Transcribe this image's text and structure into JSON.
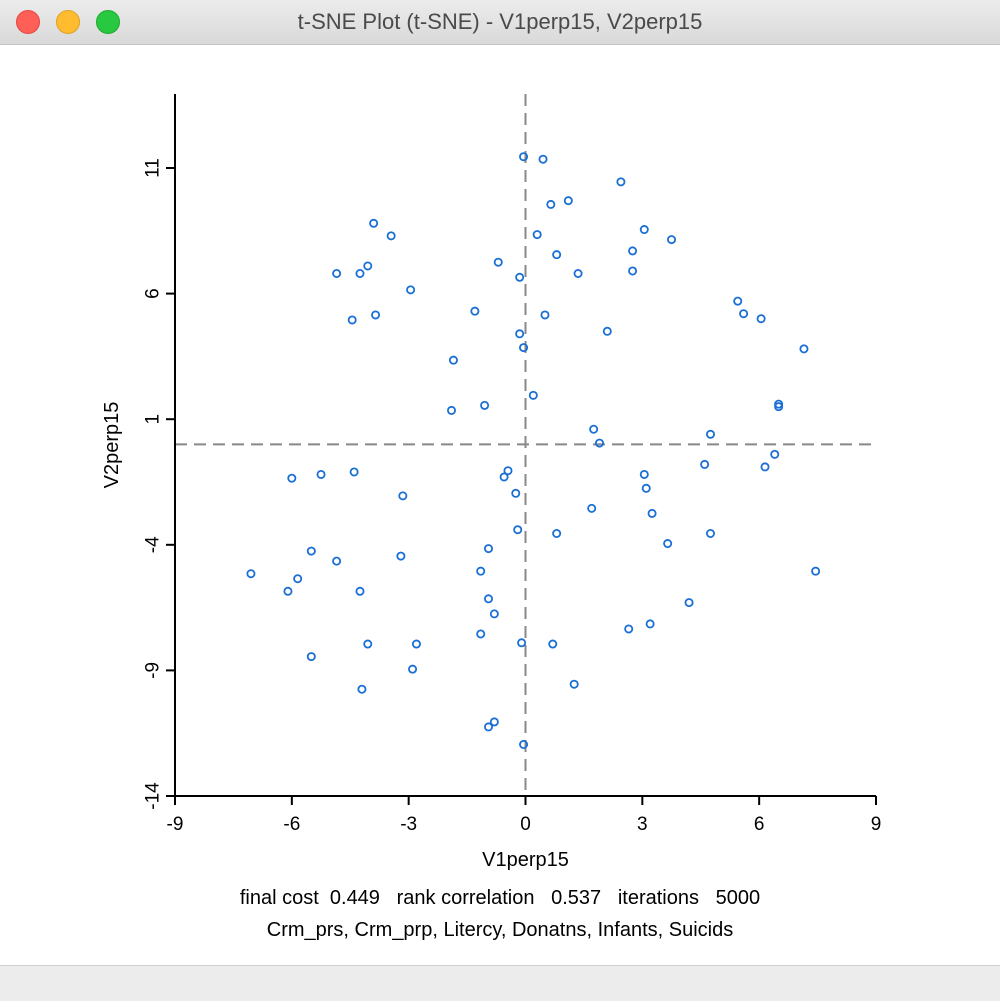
{
  "window": {
    "title": "t-SNE Plot (t-SNE) - V1perp15, V2perp15"
  },
  "footer": {
    "stats": "final cost  0.449   rank correlation   0.537   iterations   5000",
    "variables": "Crm_prs, Crm_prp, Litercy, Donatns, Infants, Suicids"
  },
  "colors": {
    "point": "#1a6fd6",
    "axis": "#000000",
    "reference_line": "#888888"
  },
  "chart_data": {
    "type": "scatter",
    "xlabel": "V1perp15",
    "ylabel": "V2perp15",
    "xlim": [
      -9,
      9
    ],
    "ylim": [
      -14,
      15
    ],
    "xticks": [
      -9,
      -6,
      -3,
      0,
      3,
      6,
      9
    ],
    "yticks": [
      -14,
      -9,
      -4,
      1,
      6,
      11
    ],
    "reference_lines": {
      "x": 0,
      "y": 0
    },
    "grid": false,
    "points": [
      [
        -0.05,
        11.45
      ],
      [
        0.45,
        11.35
      ],
      [
        2.45,
        10.45
      ],
      [
        0.65,
        9.55
      ],
      [
        1.1,
        9.7
      ],
      [
        -3.9,
        8.8
      ],
      [
        -3.45,
        8.3
      ],
      [
        0.3,
        8.35
      ],
      [
        3.05,
        8.55
      ],
      [
        3.75,
        8.15
      ],
      [
        -4.05,
        7.1
      ],
      [
        -4.25,
        6.8
      ],
      [
        -4.85,
        6.8
      ],
      [
        -0.7,
        7.25
      ],
      [
        0.8,
        7.55
      ],
      [
        2.75,
        7.7
      ],
      [
        2.75,
        6.9
      ],
      [
        1.35,
        6.8
      ],
      [
        -0.15,
        6.65
      ],
      [
        -2.95,
        6.15
      ],
      [
        -4.45,
        4.95
      ],
      [
        -3.85,
        5.15
      ],
      [
        -1.3,
        5.3
      ],
      [
        0.5,
        5.15
      ],
      [
        5.45,
        5.7
      ],
      [
        5.6,
        5.2
      ],
      [
        6.05,
        5.0
      ],
      [
        2.1,
        4.5
      ],
      [
        -0.15,
        4.4
      ],
      [
        -0.05,
        3.85
      ],
      [
        7.15,
        3.8
      ],
      [
        -1.85,
        3.35
      ],
      [
        0.2,
        1.95
      ],
      [
        -1.05,
        1.55
      ],
      [
        -1.9,
        1.35
      ],
      [
        6.5,
        1.6
      ],
      [
        6.5,
        1.5
      ],
      [
        1.75,
        0.6
      ],
      [
        1.9,
        0.05
      ],
      [
        4.75,
        0.4
      ],
      [
        6.4,
        -0.4
      ],
      [
        4.6,
        -0.8
      ],
      [
        6.15,
        -0.9
      ],
      [
        -5.25,
        -1.2
      ],
      [
        -6.0,
        -1.35
      ],
      [
        -4.4,
        -1.1
      ],
      [
        -0.45,
        -1.05
      ],
      [
        -0.55,
        -1.3
      ],
      [
        3.05,
        -1.2
      ],
      [
        3.1,
        -1.75
      ],
      [
        -3.15,
        -2.05
      ],
      [
        -0.25,
        -1.95
      ],
      [
        1.7,
        -2.55
      ],
      [
        3.25,
        -2.75
      ],
      [
        -0.2,
        -3.4
      ],
      [
        0.8,
        -3.55
      ],
      [
        4.75,
        -3.55
      ],
      [
        -5.5,
        -4.25
      ],
      [
        -4.85,
        -4.65
      ],
      [
        -3.2,
        -4.45
      ],
      [
        -0.95,
        -4.15
      ],
      [
        3.65,
        -3.95
      ],
      [
        -7.05,
        -5.15
      ],
      [
        -5.85,
        -5.35
      ],
      [
        -6.1,
        -5.85
      ],
      [
        -4.25,
        -5.85
      ],
      [
        -1.15,
        -5.05
      ],
      [
        -0.95,
        -6.15
      ],
      [
        -0.8,
        -6.75
      ],
      [
        7.45,
        -5.05
      ],
      [
        4.2,
        -6.3
      ],
      [
        -1.15,
        -7.55
      ],
      [
        2.65,
        -7.35
      ],
      [
        3.2,
        -7.15
      ],
      [
        -0.1,
        -7.9
      ],
      [
        0.7,
        -7.95
      ],
      [
        -4.05,
        -7.95
      ],
      [
        -2.8,
        -7.95
      ],
      [
        -5.5,
        -8.45
      ],
      [
        -2.9,
        -8.95
      ],
      [
        1.25,
        -9.55
      ],
      [
        -4.2,
        -9.75
      ],
      [
        -0.8,
        -11.05
      ],
      [
        -0.95,
        -11.25
      ],
      [
        -0.05,
        -11.95
      ]
    ]
  }
}
